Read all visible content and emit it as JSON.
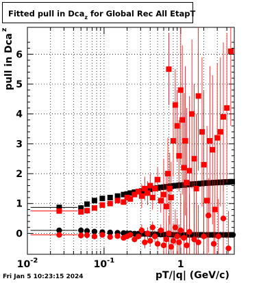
{
  "footer": {
    "timestamp": "Fri Jan  5 10:23:15 2024"
  },
  "chart_data": {
    "type": "scatter",
    "title_prefix": "Fitted pull in Dca",
    "title_sub": "z",
    "title_suffix": "for Global Rec All EtapT",
    "ylabel_main": "pull in Dca",
    "ylabel_sub": "z",
    "xlabel": "pT/|q| (GeV/c)",
    "x_scale": "log",
    "xlim": [
      0.01,
      5
    ],
    "ylim": [
      -0.7,
      6.9
    ],
    "grid": true,
    "x_ticks": [
      {
        "value": 0.01,
        "base": "10",
        "exp": "-2"
      },
      {
        "value": 0.1,
        "base": "10",
        "exp": "-1"
      },
      {
        "value": 1,
        "base": "1",
        "exp": ""
      }
    ],
    "y_ticks": [
      0,
      1,
      2,
      3,
      4,
      5,
      6
    ],
    "colors": {
      "sigma_black": "#000000",
      "mean_black": "#000000",
      "sigma_red": "#ff0000",
      "mean_red": "#ff0000"
    },
    "series": [
      {
        "marker": "square",
        "color": "#000000",
        "x": [
          0.026,
          0.05,
          0.06,
          0.075,
          0.095,
          0.12,
          0.15,
          0.18,
          0.2,
          0.22,
          0.25,
          0.28,
          0.31,
          0.34,
          0.37,
          0.4,
          0.43,
          0.46,
          0.5,
          0.55,
          0.6,
          0.65,
          0.7,
          0.75,
          0.8,
          0.85,
          0.9,
          0.95,
          1.0,
          1.1,
          1.2,
          1.3,
          1.4,
          1.5,
          1.6,
          1.7,
          1.8,
          1.9,
          2.0,
          2.1,
          2.2,
          2.3,
          2.5,
          2.7,
          2.9,
          3.1,
          3.3,
          3.5,
          3.7,
          3.9,
          4.1,
          4.3,
          4.5,
          4.7
        ],
        "y": [
          0.87,
          0.85,
          0.98,
          1.1,
          1.17,
          1.2,
          1.25,
          1.3,
          1.32,
          1.35,
          1.38,
          1.4,
          1.42,
          1.44,
          1.46,
          1.48,
          1.5,
          1.51,
          1.52,
          1.54,
          1.55,
          1.56,
          1.57,
          1.58,
          1.59,
          1.6,
          1.6,
          1.61,
          1.62,
          1.62,
          1.63,
          1.64,
          1.65,
          1.65,
          1.66,
          1.66,
          1.67,
          1.67,
          1.68,
          1.68,
          1.69,
          1.69,
          1.69,
          1.7,
          1.7,
          1.71,
          1.71,
          1.71,
          1.72,
          1.72,
          1.72,
          1.72,
          1.73,
          1.73
        ]
      },
      {
        "marker": "circle",
        "color": "#000000",
        "x": [
          0.026,
          0.05,
          0.06,
          0.075,
          0.095,
          0.12,
          0.15,
          0.18,
          0.2,
          0.22,
          0.25,
          0.28,
          0.31,
          0.34,
          0.37,
          0.4,
          0.43,
          0.46,
          0.5,
          0.55,
          0.6,
          0.65,
          0.7,
          0.75,
          0.8,
          0.85,
          0.9,
          0.95,
          1.0,
          1.1,
          1.2,
          1.3,
          1.4,
          1.5,
          1.6,
          1.7,
          1.8,
          1.9,
          2.0,
          2.2,
          2.4,
          2.6,
          2.8,
          3.0,
          3.3,
          3.6,
          3.9,
          4.2,
          4.5,
          4.8
        ],
        "y": [
          0.1,
          0.1,
          0.08,
          0.06,
          0.04,
          0.03,
          0.02,
          0.01,
          0.0,
          0.0,
          -0.01,
          -0.01,
          -0.02,
          -0.02,
          -0.02,
          -0.03,
          -0.03,
          -0.03,
          -0.03,
          -0.04,
          -0.04,
          -0.04,
          -0.04,
          -0.04,
          -0.05,
          -0.05,
          -0.05,
          -0.05,
          -0.05,
          -0.05,
          -0.05,
          -0.05,
          -0.05,
          -0.05,
          -0.05,
          -0.05,
          -0.05,
          -0.05,
          -0.05,
          -0.05,
          -0.05,
          -0.05,
          -0.05,
          -0.05,
          -0.05,
          -0.05,
          -0.05,
          -0.05,
          -0.05,
          -0.05
        ]
      },
      {
        "marker": "square",
        "color": "#ff0000",
        "x": [
          0.026,
          0.05,
          0.06,
          0.075,
          0.095,
          0.12,
          0.15,
          0.18,
          0.2,
          0.22,
          0.25,
          0.28,
          0.31,
          0.34,
          0.37,
          0.4,
          0.43,
          0.46,
          0.5,
          0.55,
          0.6,
          0.65,
          0.68,
          0.7,
          0.72,
          0.75,
          0.8,
          0.85,
          0.9,
          0.95,
          1.0,
          1.05,
          1.1,
          1.15,
          1.2,
          1.3,
          1.4,
          1.5,
          1.6,
          1.7,
          1.9,
          2.0,
          2.2,
          2.4,
          2.6,
          2.8,
          3.0,
          3.3,
          3.6,
          4.0,
          4.5
        ],
        "y": [
          0.75,
          0.72,
          0.76,
          0.85,
          0.95,
          1.0,
          1.1,
          1.05,
          1.2,
          1.15,
          1.3,
          1.4,
          1.25,
          1.5,
          1.35,
          1.6,
          1.2,
          1.5,
          1.8,
          1.1,
          1.3,
          0.9,
          2.0,
          5.5,
          1.5,
          1.2,
          3.1,
          4.3,
          3.6,
          2.6,
          4.8,
          3.8,
          2.2,
          3.1,
          1.7,
          2.1,
          4.0,
          2.5,
          1.5,
          4.6,
          3.4,
          2.3,
          1.1,
          3.1,
          2.8,
          0.8,
          3.2,
          3.4,
          3.9,
          4.2,
          6.1
        ]
      },
      {
        "marker": "circle",
        "color": "#ff0000",
        "x": [
          0.026,
          0.05,
          0.06,
          0.075,
          0.095,
          0.12,
          0.15,
          0.18,
          0.2,
          0.22,
          0.25,
          0.28,
          0.31,
          0.34,
          0.37,
          0.4,
          0.43,
          0.46,
          0.5,
          0.55,
          0.6,
          0.65,
          0.7,
          0.75,
          0.8,
          0.85,
          0.9,
          0.95,
          1.0,
          1.1,
          1.2,
          1.3,
          1.5,
          1.7,
          2.0,
          2.3,
          2.7,
          3.1,
          3.6,
          4.2
        ],
        "y": [
          -0.05,
          -0.07,
          -0.06,
          -0.1,
          -0.05,
          -0.12,
          -0.09,
          -0.15,
          -0.1,
          -0.05,
          -0.2,
          -0.1,
          0.1,
          -0.3,
          0.0,
          -0.25,
          0.2,
          -0.1,
          -0.35,
          0.1,
          -0.4,
          -0.2,
          0.0,
          -0.45,
          -0.25,
          0.2,
          -0.1,
          -0.3,
          0.1,
          -0.15,
          -0.4,
          0.05,
          -0.2,
          -0.3,
          -0.1,
          0.6,
          -0.35,
          -0.1,
          0.5,
          -0.5
        ]
      }
    ]
  }
}
